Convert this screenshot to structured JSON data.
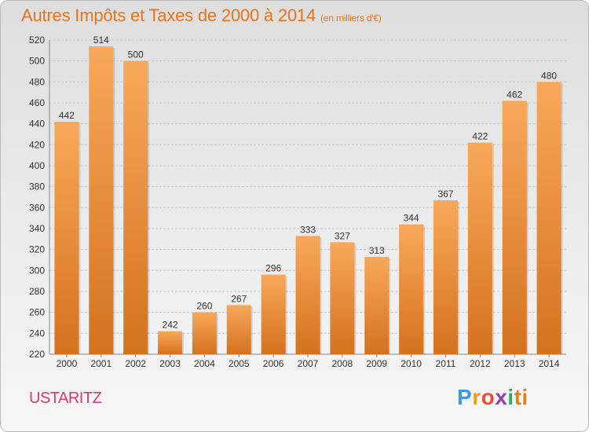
{
  "header": {
    "title": "Autres Impôts et Taxes de 2000 à 2014",
    "unit": "(en milliers d'€)"
  },
  "footer": {
    "place": "USTARITZ",
    "logo_letters": [
      "P",
      "r",
      "o",
      "x",
      "i",
      "ti"
    ]
  },
  "colors": {
    "title": "#e8731a",
    "place": "#d63a6b",
    "bar_light": "#f8a85a",
    "bar_dark": "#d4721f"
  },
  "chart_data": {
    "type": "bar",
    "title": "Autres Impôts et Taxes de 2000 à 2014",
    "subtitle": "(en milliers d'€)",
    "categories": [
      "2000",
      "2001",
      "2002",
      "2003",
      "2004",
      "2005",
      "2006",
      "2007",
      "2008",
      "2009",
      "2010",
      "2011",
      "2012",
      "2013",
      "2014"
    ],
    "values": [
      442,
      514,
      500,
      242,
      260,
      267,
      296,
      333,
      327,
      313,
      344,
      367,
      422,
      462,
      480
    ],
    "ylim": [
      220,
      520
    ],
    "yticks": [
      220,
      240,
      260,
      280,
      300,
      320,
      340,
      360,
      380,
      400,
      420,
      440,
      460,
      480,
      500,
      520
    ],
    "grid": true,
    "data_labels": true
  }
}
